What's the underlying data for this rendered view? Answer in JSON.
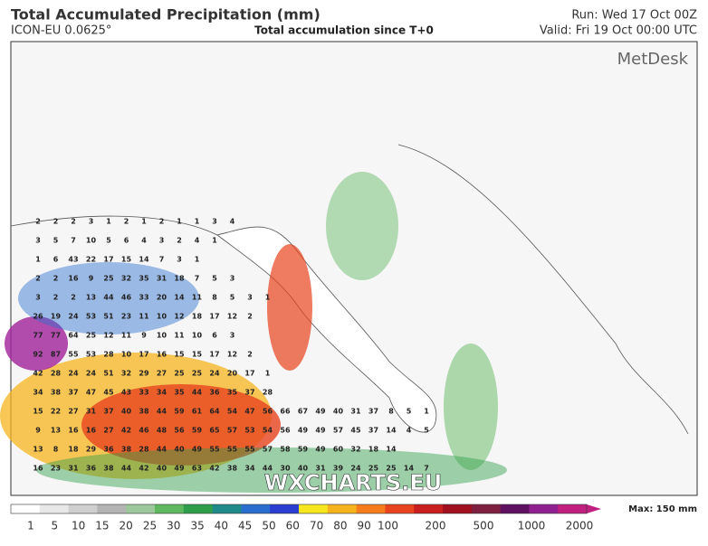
{
  "header": {
    "title": "Total Accumulated Precipitation (mm)",
    "model": "ICON-EU 0.0625°",
    "subtitle": "Total accumulation since T+0",
    "run": "Run: Wed 17 Oct 00Z",
    "valid": "Valid: Fri 19 Oct 00:00 UTC"
  },
  "logo": "MetDesk",
  "watermark": "WXCHARTS.EU",
  "map_labels": [
    [
      2,
      2,
      2,
      3,
      1,
      2,
      1,
      2,
      1,
      1,
      3,
      4
    ],
    [
      3,
      5,
      7,
      10,
      5,
      6,
      4,
      3,
      2,
      4,
      1
    ],
    [
      1,
      6,
      43,
      22,
      17,
      15,
      14,
      7,
      3,
      1
    ],
    [
      2,
      2,
      16,
      9,
      25,
      32,
      35,
      31,
      18,
      7,
      5,
      3
    ],
    [
      3,
      2,
      2,
      13,
      44,
      46,
      33,
      20,
      14,
      11,
      8,
      5,
      3,
      1
    ],
    [
      26,
      19,
      24,
      53,
      51,
      23,
      11,
      10,
      12,
      18,
      17,
      12,
      2
    ],
    [
      77,
      77,
      64,
      25,
      12,
      11,
      9,
      10,
      11,
      10,
      6,
      3
    ],
    [
      92,
      87,
      55,
      53,
      28,
      10,
      17,
      16,
      15,
      15,
      17,
      12,
      2
    ],
    [
      42,
      28,
      24,
      24,
      51,
      32,
      29,
      27,
      25,
      25,
      24,
      20,
      17,
      1
    ],
    [
      34,
      38,
      37,
      47,
      45,
      43,
      33,
      34,
      35,
      44,
      36,
      35,
      37,
      28
    ],
    [
      15,
      22,
      27,
      31,
      37,
      40,
      38,
      44,
      59,
      61,
      64,
      54,
      47,
      56,
      66,
      67,
      49,
      40,
      31,
      37,
      8,
      5,
      1
    ],
    [
      9,
      13,
      16,
      16,
      27,
      42,
      46,
      48,
      56,
      59,
      65,
      57,
      53,
      54,
      56,
      49,
      49,
      57,
      45,
      37,
      14,
      4,
      5
    ],
    [
      13,
      8,
      18,
      29,
      36,
      38,
      28,
      44,
      40,
      49,
      55,
      55,
      55,
      57,
      58,
      59,
      49,
      60,
      32,
      18,
      14
    ],
    [
      16,
      23,
      31,
      36,
      38,
      44,
      42,
      40,
      49,
      63,
      42,
      38,
      34,
      44,
      30,
      40,
      31,
      39,
      24,
      25,
      25,
      14,
      7
    ]
  ],
  "colorbar": {
    "ticks": [
      1,
      5,
      10,
      15,
      20,
      25,
      30,
      35,
      40,
      45,
      50,
      60,
      70,
      80,
      90,
      100,
      200,
      500,
      1000,
      2000
    ],
    "colors": [
      "#ffffff",
      "#e8e8e8",
      "#cfcfcf",
      "#b4b4b4",
      "#9cc89c",
      "#5fb85f",
      "#2e9e4a",
      "#1f8a8a",
      "#2a6fd0",
      "#2a3fd0",
      "#f5e61e",
      "#f5b41e",
      "#f57d1e",
      "#e8441e",
      "#c8201e",
      "#a0101e",
      "#802040",
      "#601060",
      "#902090",
      "#c02080"
    ],
    "max_label": "Max: 150 mm"
  }
}
